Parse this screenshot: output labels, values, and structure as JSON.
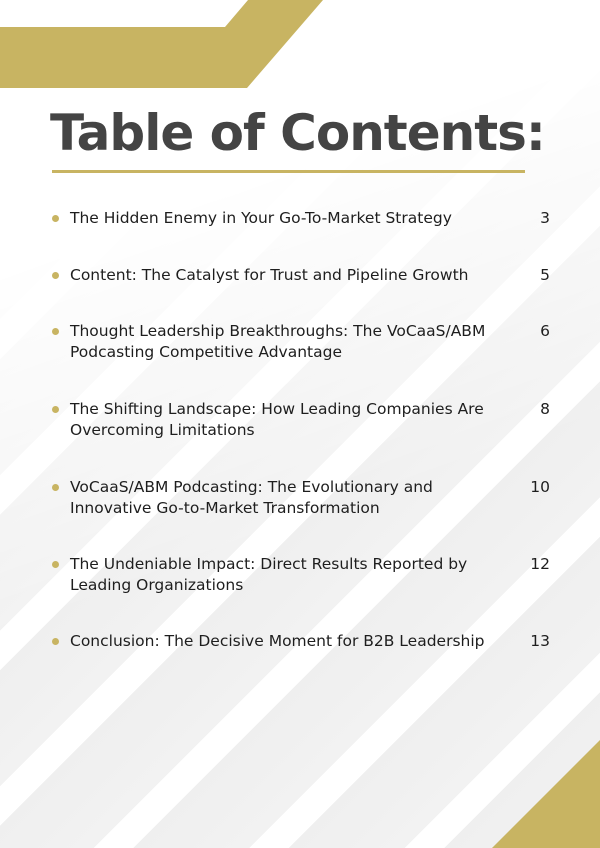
{
  "title": "Table of Contents:",
  "accent_color": "#c8b462",
  "items": [
    {
      "text": "The Hidden Enemy in Your Go-To-Market Strategy",
      "page": "3"
    },
    {
      "text": "Content: The Catalyst for Trust and Pipeline Growth",
      "page": "5"
    },
    {
      "text": "Thought Leadership Breakthroughs: The VoCaaS/ABM Podcasting Competitive Advantage",
      "page": "6"
    },
    {
      "text": "The Shifting Landscape: How Leading Companies Are Overcoming Limitations",
      "page": "8"
    },
    {
      "text": "VoCaaS/ABM Podcasting: The Evolutionary and Innovative Go-to-Market Transformation",
      "page": "10"
    },
    {
      "text": "The Undeniable Impact: Direct Results Reported by Leading Organizations",
      "page": "12"
    },
    {
      "text": "Conclusion: The Decisive Moment for B2B Leadership",
      "page": "13"
    }
  ]
}
